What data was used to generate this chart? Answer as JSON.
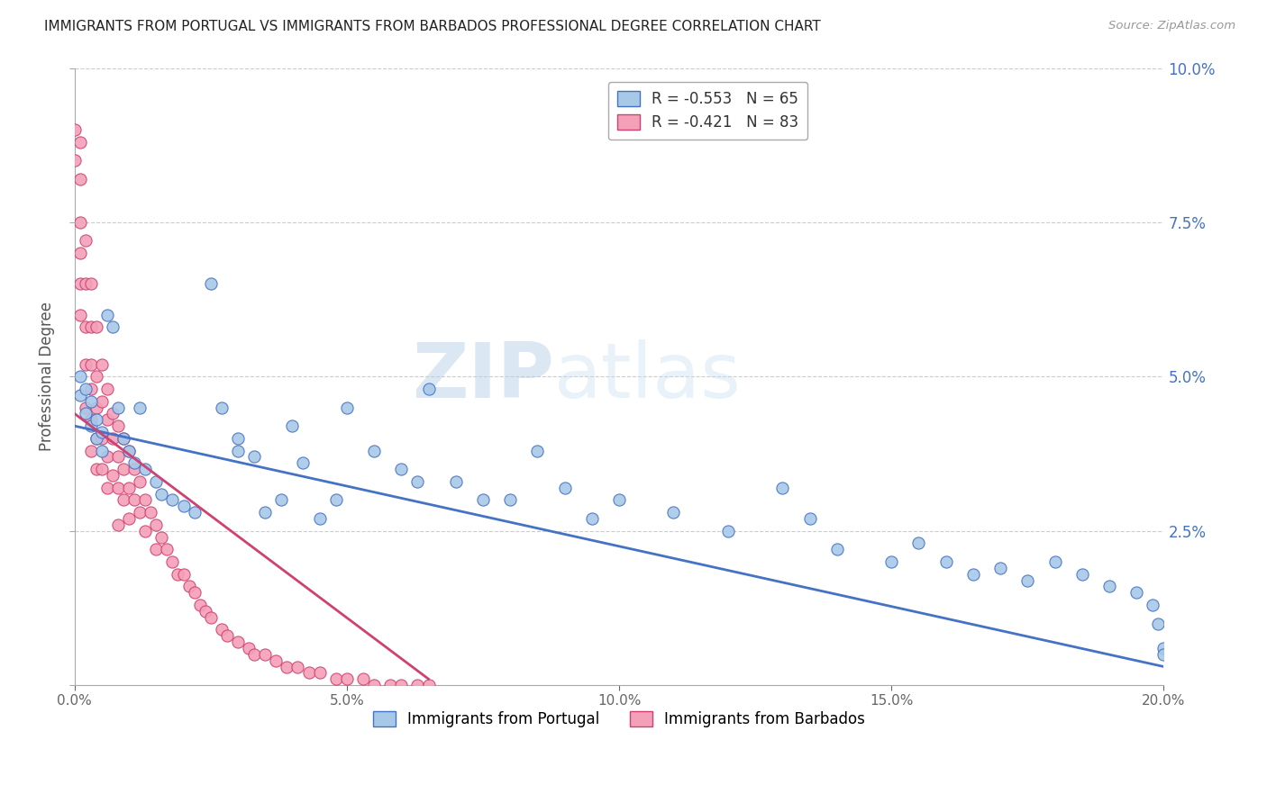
{
  "title": "IMMIGRANTS FROM PORTUGAL VS IMMIGRANTS FROM BARBADOS PROFESSIONAL DEGREE CORRELATION CHART",
  "source": "Source: ZipAtlas.com",
  "ylabel": "Professional Degree",
  "xmin": 0.0,
  "xmax": 0.2,
  "ymin": 0.0,
  "ymax": 0.1,
  "xticks": [
    0.0,
    0.05,
    0.1,
    0.15,
    0.2
  ],
  "yticks": [
    0.0,
    0.025,
    0.05,
    0.075,
    0.1
  ],
  "portugal_color": "#a8c8e8",
  "barbados_color": "#f4a0b8",
  "portugal_line_color": "#4472c4",
  "barbados_line_color": "#d04070",
  "portugal_R": -0.553,
  "portugal_N": 65,
  "barbados_R": -0.421,
  "barbados_N": 83,
  "legend_label_portugal": "Immigrants from Portugal",
  "legend_label_barbados": "Immigrants from Barbados",
  "watermark_zip": "ZIP",
  "watermark_atlas": "atlas",
  "background_color": "#ffffff",
  "grid_color": "#cccccc",
  "portugal_x": [
    0.001,
    0.001,
    0.002,
    0.002,
    0.003,
    0.003,
    0.004,
    0.004,
    0.005,
    0.005,
    0.006,
    0.007,
    0.008,
    0.009,
    0.01,
    0.011,
    0.012,
    0.013,
    0.015,
    0.016,
    0.018,
    0.02,
    0.022,
    0.025,
    0.027,
    0.03,
    0.03,
    0.033,
    0.035,
    0.038,
    0.04,
    0.042,
    0.045,
    0.048,
    0.05,
    0.055,
    0.06,
    0.063,
    0.065,
    0.07,
    0.075,
    0.08,
    0.085,
    0.09,
    0.095,
    0.1,
    0.11,
    0.12,
    0.13,
    0.135,
    0.14,
    0.15,
    0.155,
    0.16,
    0.165,
    0.17,
    0.175,
    0.18,
    0.185,
    0.19,
    0.195,
    0.198,
    0.199,
    0.2,
    0.2
  ],
  "portugal_y": [
    0.05,
    0.047,
    0.048,
    0.044,
    0.046,
    0.042,
    0.043,
    0.04,
    0.041,
    0.038,
    0.06,
    0.058,
    0.045,
    0.04,
    0.038,
    0.036,
    0.045,
    0.035,
    0.033,
    0.031,
    0.03,
    0.029,
    0.028,
    0.065,
    0.045,
    0.04,
    0.038,
    0.037,
    0.028,
    0.03,
    0.042,
    0.036,
    0.027,
    0.03,
    0.045,
    0.038,
    0.035,
    0.033,
    0.048,
    0.033,
    0.03,
    0.03,
    0.038,
    0.032,
    0.027,
    0.03,
    0.028,
    0.025,
    0.032,
    0.027,
    0.022,
    0.02,
    0.023,
    0.02,
    0.018,
    0.019,
    0.017,
    0.02,
    0.018,
    0.016,
    0.015,
    0.013,
    0.01,
    0.006,
    0.005
  ],
  "barbados_x": [
    0.0,
    0.0,
    0.001,
    0.001,
    0.001,
    0.001,
    0.001,
    0.001,
    0.002,
    0.002,
    0.002,
    0.002,
    0.002,
    0.003,
    0.003,
    0.003,
    0.003,
    0.003,
    0.003,
    0.004,
    0.004,
    0.004,
    0.004,
    0.004,
    0.005,
    0.005,
    0.005,
    0.005,
    0.006,
    0.006,
    0.006,
    0.006,
    0.007,
    0.007,
    0.007,
    0.008,
    0.008,
    0.008,
    0.008,
    0.009,
    0.009,
    0.009,
    0.01,
    0.01,
    0.01,
    0.011,
    0.011,
    0.012,
    0.012,
    0.013,
    0.013,
    0.014,
    0.015,
    0.015,
    0.016,
    0.017,
    0.018,
    0.019,
    0.02,
    0.021,
    0.022,
    0.023,
    0.024,
    0.025,
    0.027,
    0.028,
    0.03,
    0.032,
    0.033,
    0.035,
    0.037,
    0.039,
    0.041,
    0.043,
    0.045,
    0.048,
    0.05,
    0.053,
    0.055,
    0.058,
    0.06,
    0.063,
    0.065
  ],
  "barbados_y": [
    0.09,
    0.085,
    0.088,
    0.082,
    0.075,
    0.07,
    0.065,
    0.06,
    0.072,
    0.065,
    0.058,
    0.052,
    0.045,
    0.065,
    0.058,
    0.052,
    0.048,
    0.043,
    0.038,
    0.058,
    0.05,
    0.045,
    0.04,
    0.035,
    0.052,
    0.046,
    0.04,
    0.035,
    0.048,
    0.043,
    0.037,
    0.032,
    0.044,
    0.04,
    0.034,
    0.042,
    0.037,
    0.032,
    0.026,
    0.04,
    0.035,
    0.03,
    0.038,
    0.032,
    0.027,
    0.035,
    0.03,
    0.033,
    0.028,
    0.03,
    0.025,
    0.028,
    0.026,
    0.022,
    0.024,
    0.022,
    0.02,
    0.018,
    0.018,
    0.016,
    0.015,
    0.013,
    0.012,
    0.011,
    0.009,
    0.008,
    0.007,
    0.006,
    0.005,
    0.005,
    0.004,
    0.003,
    0.003,
    0.002,
    0.002,
    0.001,
    0.001,
    0.001,
    0.0,
    0.0,
    0.0,
    0.0,
    0.0
  ]
}
